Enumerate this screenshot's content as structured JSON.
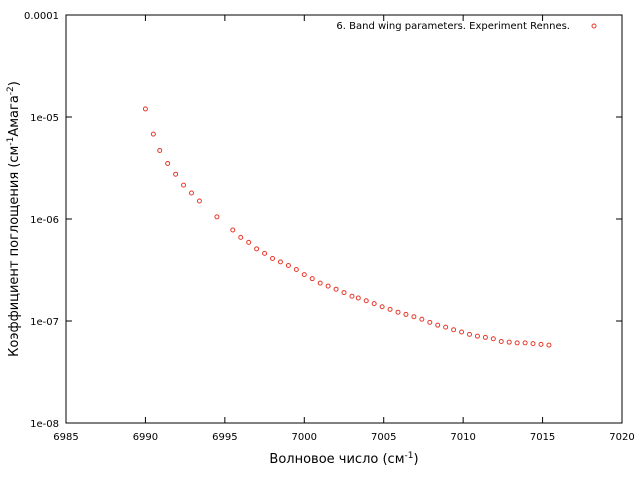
{
  "chart_data": {
    "type": "scatter",
    "xlabel": "Волновое число (см",
    "xlabel_sup": "-1",
    "xlabel_end": ")",
    "ylabel": "Коэффициент поглощения (см",
    "ylabel_sup1": "-1",
    "ylabel_mid": "Амага",
    "ylabel_sup2": "-2",
    "ylabel_end": ")",
    "xlim": [
      6985,
      7020
    ],
    "ylim": [
      1e-08,
      0.0001
    ],
    "y_scale": "log",
    "grid": false,
    "legend_position": "top-right",
    "x_ticks": [
      6985,
      6990,
      6995,
      7000,
      7005,
      7010,
      7015,
      7020
    ],
    "x_tick_labels": [
      "6985",
      "6990",
      "6995",
      "7000",
      "7005",
      "7010",
      "7015",
      "7020"
    ],
    "y_ticks": [
      1e-08,
      1e-07,
      1e-06,
      1e-05,
      0.0001
    ],
    "y_tick_labels": [
      "1e-08",
      "1e-07",
      "1e-06",
      "1e-05",
      "0.0001"
    ],
    "series": [
      {
        "name": "6. Band wing parameters. Experiment Rennes.",
        "color": "#e8392b",
        "marker": "circle-open",
        "x": [
          6990.0,
          6990.5,
          6990.9,
          6991.4,
          6991.9,
          6992.4,
          6992.9,
          6993.4,
          6994.5,
          6995.5,
          6996.0,
          6996.5,
          6997.0,
          6997.5,
          6998.0,
          6998.5,
          6999.0,
          6999.5,
          7000.0,
          7000.5,
          7001.0,
          7001.5,
          7002.0,
          7002.5,
          7003.0,
          7003.4,
          7003.9,
          7004.4,
          7004.9,
          7005.4,
          7005.9,
          7006.4,
          7006.9,
          7007.4,
          7007.9,
          7008.4,
          7008.9,
          7009.4,
          7009.9,
          7010.4,
          7010.9,
          7011.4,
          7011.9,
          7012.4,
          7012.9,
          7013.4,
          7013.9,
          7014.4,
          7014.9,
          7015.4
        ],
        "y": [
          1.2e-05,
          6.8e-06,
          4.7e-06,
          3.5e-06,
          2.75e-06,
          2.15e-06,
          1.8e-06,
          1.5e-06,
          1.05e-06,
          7.8e-07,
          6.6e-07,
          5.9e-07,
          5.1e-07,
          4.6e-07,
          4.1e-07,
          3.8e-07,
          3.5e-07,
          3.2e-07,
          2.85e-07,
          2.6e-07,
          2.35e-07,
          2.2e-07,
          2.05e-07,
          1.9e-07,
          1.75e-07,
          1.68e-07,
          1.58e-07,
          1.48e-07,
          1.38e-07,
          1.3e-07,
          1.22e-07,
          1.16e-07,
          1.1e-07,
          1.04e-07,
          9.7e-08,
          9.1e-08,
          8.7e-08,
          8.2e-08,
          7.8e-08,
          7.4e-08,
          7.1e-08,
          6.9e-08,
          6.7e-08,
          6.3e-08,
          6.2e-08,
          6.1e-08,
          6.1e-08,
          6e-08,
          5.9e-08,
          5.8e-08
        ]
      }
    ]
  }
}
